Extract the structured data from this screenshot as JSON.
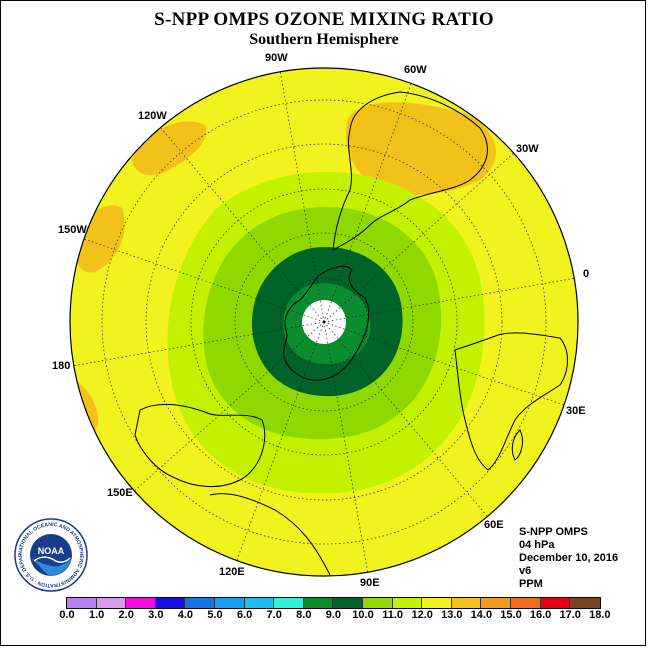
{
  "title": "S-NPP OMPS OZONE MIXING RATIO",
  "subtitle": "Southern Hemisphere",
  "longitude_labels": [
    "90W",
    "60W",
    "120W",
    "30W",
    "150W",
    "0",
    "180",
    "30E",
    "150E",
    "60E",
    "120E",
    "90E"
  ],
  "info": {
    "instrument": "S-NPP OMPS",
    "level": "04 hPa",
    "date": "December 10, 2016",
    "version": "v6",
    "units": "PPM"
  },
  "colorbar": {
    "ticks": [
      "0.0",
      "1.0",
      "2.0",
      "3.0",
      "4.0",
      "5.0",
      "6.0",
      "7.0",
      "8.0",
      "9.0",
      "10.0",
      "11.0",
      "12.0",
      "13.0",
      "14.0",
      "15.0",
      "16.0",
      "17.0",
      "18.0"
    ],
    "colors": [
      "#b57ff2",
      "#d69bf0",
      "#f20cdd",
      "#1a0fe6",
      "#1673e6",
      "#199bf0",
      "#1fbcf2",
      "#2ff2d6",
      "#0b8c2e",
      "#006428",
      "#8fd900",
      "#c2f200",
      "#f2f21f",
      "#f2c21a",
      "#f29a1a",
      "#f26a1a",
      "#e6000f",
      "#7a4422"
    ]
  },
  "logo": {
    "text": "NOAA",
    "ring_text": "NATIONAL OCEANIC AND ATMOSPHERIC ADMINISTRATION · U.S. DEPARTMENT OF COMMERCE"
  }
}
